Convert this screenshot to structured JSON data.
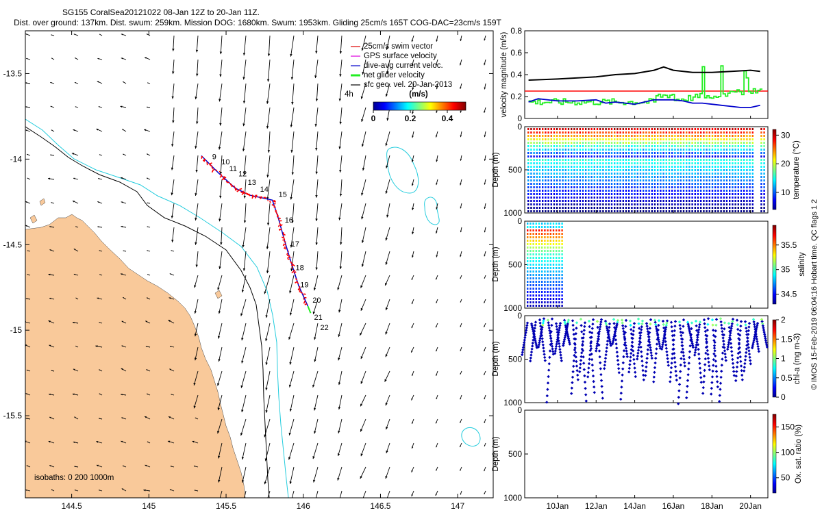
{
  "header": {
    "line1": "SG155 CoralSea20121022 08-Jan 12Z to 20-Jan 11Z.",
    "line2": "Dist. over ground: 137km. Dist. swum: 259km. Mission DOG: 1680km. Swum: 1953km. Gliding 25cm/s 165T COG-DAC=23cm/s 159T"
  },
  "colors": {
    "land": "#f9c99a",
    "isobath200": "#000000",
    "isobath1000": "#22ccdd",
    "track": "#ff0000",
    "dac": "#0000cc",
    "net": "#22ee22",
    "sfc": "#000000",
    "gps": "#dd00dd",
    "swim": "#dd0000"
  },
  "map": {
    "type": "map",
    "x_ticks": [
      "144.5",
      "145",
      "145.5",
      "146",
      "146.5",
      "147"
    ],
    "y_ticks": [
      "-13.5",
      "-14",
      "-14.5",
      "-15",
      "-15.5"
    ],
    "xlim": [
      144.2,
      147.23
    ],
    "ylim": [
      -15.98,
      -13.25
    ],
    "legend": [
      {
        "label": "25cm/s swim vector",
        "color": "#dd0000"
      },
      {
        "label": "GPS surface velocity",
        "color": "#dd00dd"
      },
      {
        "label": "dive-avg current veloc.",
        "color": "#0000cc"
      },
      {
        "label": "net glider velocity",
        "color": "#22ee22"
      },
      {
        "label": "sfc geo. vel. 20-Jan-2013",
        "color": "#000000"
      }
    ],
    "scale_label": "4h",
    "colorbar": {
      "title": "(m/s)",
      "ticks": [
        "0",
        "0.2",
        "0.4"
      ],
      "range": [
        0,
        0.5
      ]
    },
    "isobaths_label": "isobaths: 0   200  1000m",
    "day_labels": [
      {
        "text": "9",
        "lon": 145.41,
        "lat": -14.0
      },
      {
        "text": "10",
        "lon": 145.47,
        "lat": -14.03
      },
      {
        "text": "11",
        "lon": 145.52,
        "lat": -14.07
      },
      {
        "text": "12",
        "lon": 145.58,
        "lat": -14.1
      },
      {
        "text": "13",
        "lon": 145.64,
        "lat": -14.15
      },
      {
        "text": "14",
        "lon": 145.72,
        "lat": -14.19
      },
      {
        "text": "15",
        "lon": 145.84,
        "lat": -14.22
      },
      {
        "text": "16",
        "lon": 145.88,
        "lat": -14.37
      },
      {
        "text": "17",
        "lon": 145.92,
        "lat": -14.51
      },
      {
        "text": "18",
        "lon": 145.95,
        "lat": -14.65
      },
      {
        "text": "19",
        "lon": 145.98,
        "lat": -14.75
      },
      {
        "text": "20",
        "lon": 146.06,
        "lat": -14.84
      },
      {
        "text": "21",
        "lon": 146.07,
        "lat": -14.94
      },
      {
        "text": "22",
        "lon": 146.11,
        "lat": -15.0
      }
    ],
    "track": [
      [
        145.34,
        -13.98
      ],
      [
        145.45,
        -14.08
      ],
      [
        145.56,
        -14.17
      ],
      [
        145.65,
        -14.21
      ],
      [
        145.8,
        -14.24
      ],
      [
        145.84,
        -14.35
      ],
      [
        145.88,
        -14.48
      ],
      [
        145.92,
        -14.6
      ],
      [
        145.97,
        -14.74
      ],
      [
        146.03,
        -14.86
      ]
    ]
  },
  "velocity_panel": {
    "type": "line",
    "ylabel": "velocity magnitude (m/s)",
    "ylim": [
      0,
      0.8
    ],
    "y_ticks": [
      "0",
      "0.2",
      "0.4",
      "0.6",
      "0.8"
    ],
    "reference": 0.25,
    "total": [
      [
        8.5,
        0.35
      ],
      [
        10,
        0.36
      ],
      [
        12,
        0.38
      ],
      [
        13,
        0.4
      ],
      [
        14,
        0.41
      ],
      [
        15,
        0.44
      ],
      [
        15.5,
        0.47
      ],
      [
        16,
        0.44
      ],
      [
        17,
        0.42
      ],
      [
        18,
        0.42
      ],
      [
        19,
        0.43
      ],
      [
        20,
        0.44
      ],
      [
        20.5,
        0.43
      ]
    ],
    "dac": [
      [
        8.5,
        0.15
      ],
      [
        9,
        0.18
      ],
      [
        10,
        0.16
      ],
      [
        11,
        0.16
      ],
      [
        12,
        0.17
      ],
      [
        12.5,
        0.14
      ],
      [
        13,
        0.15
      ],
      [
        14,
        0.13
      ],
      [
        14.5,
        0.15
      ],
      [
        15,
        0.17
      ],
      [
        15.5,
        0.17
      ],
      [
        16,
        0.17
      ],
      [
        16.5,
        0.16
      ],
      [
        17,
        0.14
      ],
      [
        17.5,
        0.14
      ],
      [
        18,
        0.13
      ],
      [
        18.5,
        0.12
      ],
      [
        19,
        0.11
      ],
      [
        19.5,
        0.1
      ],
      [
        20,
        0.1
      ],
      [
        20.5,
        0.12
      ]
    ]
  },
  "temperature_panel": {
    "type": "scatter",
    "ylabel": "Depth (m)",
    "y_ticks": [
      "0",
      "500",
      "1000"
    ],
    "colorbar_label": "temperature (°C)",
    "colorbar_ticks": [
      "10",
      "20",
      "30"
    ],
    "crange": [
      4,
      32
    ]
  },
  "salinity_panel": {
    "type": "scatter",
    "ylabel": "Depth (m)",
    "y_ticks": [
      "0",
      "500",
      "1000"
    ],
    "colorbar_label": "salinity",
    "colorbar_ticks": [
      "34.5",
      "35",
      "35.5"
    ],
    "crange": [
      34.3,
      35.9
    ]
  },
  "chla_panel": {
    "type": "scatter",
    "ylabel": "Depth (m)",
    "y_ticks": [
      "0",
      "500",
      "1000"
    ],
    "colorbar_label": "chl-a (mg m-3)",
    "colorbar_ticks": [
      "0",
      "0.5",
      "1",
      "1.5",
      "2"
    ],
    "crange": [
      0,
      2
    ]
  },
  "oxygen_panel": {
    "type": "scatter",
    "ylabel": "Depth (m)",
    "y_ticks": [
      "0",
      "500",
      "1000"
    ],
    "colorbar_label": "Ox. sat. ratio (%)",
    "colorbar_ticks": [
      "50",
      "100",
      "150"
    ],
    "crange": [
      20,
      175
    ]
  },
  "time_axis": {
    "ticks": [
      "10Jan",
      "12Jan",
      "14Jan",
      "16Jan",
      "18Jan",
      "20Jan"
    ],
    "tick_days": [
      10,
      12,
      14,
      16,
      18,
      20
    ],
    "range": [
      8.3,
      20.9
    ]
  },
  "side_text": "© IMOS 15-Feb-2019 06:04:16 Hobart time. QC flags 1  2"
}
